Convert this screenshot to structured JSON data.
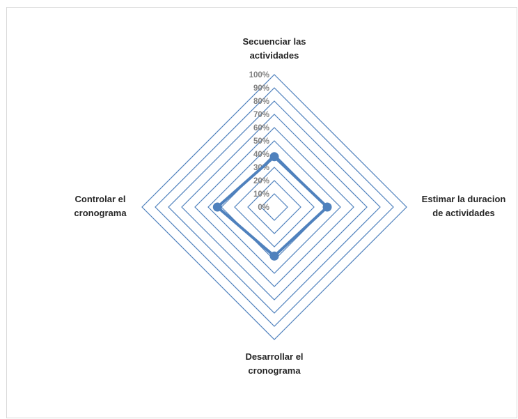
{
  "chart_data": {
    "type": "radar",
    "axes": [
      {
        "label_lines": [
          "Secuenciar las",
          "actividades"
        ]
      },
      {
        "label_lines": [
          "Estimar la duracion",
          "de actividades"
        ]
      },
      {
        "label_lines": [
          "Desarrollar el",
          "cronograma"
        ]
      },
      {
        "label_lines": [
          "Controlar el",
          "cronograma"
        ]
      }
    ],
    "categories": [
      "Secuenciar las actividades",
      "Estimar la duracion de actividades",
      "Desarrollar el cronograma",
      "Controlar el cronograma"
    ],
    "series": [
      {
        "values": [
          0.38,
          0.4,
          0.37,
          0.43
        ],
        "color": "#4f81bd"
      }
    ],
    "range": [
      0,
      1
    ],
    "ticks": [
      "0%",
      "10%",
      "20%",
      "30%",
      "40%",
      "50%",
      "60%",
      "70%",
      "80%",
      "90%",
      "100%"
    ],
    "gridline_color": "#4f81bd",
    "grid": true,
    "legend": "none"
  }
}
